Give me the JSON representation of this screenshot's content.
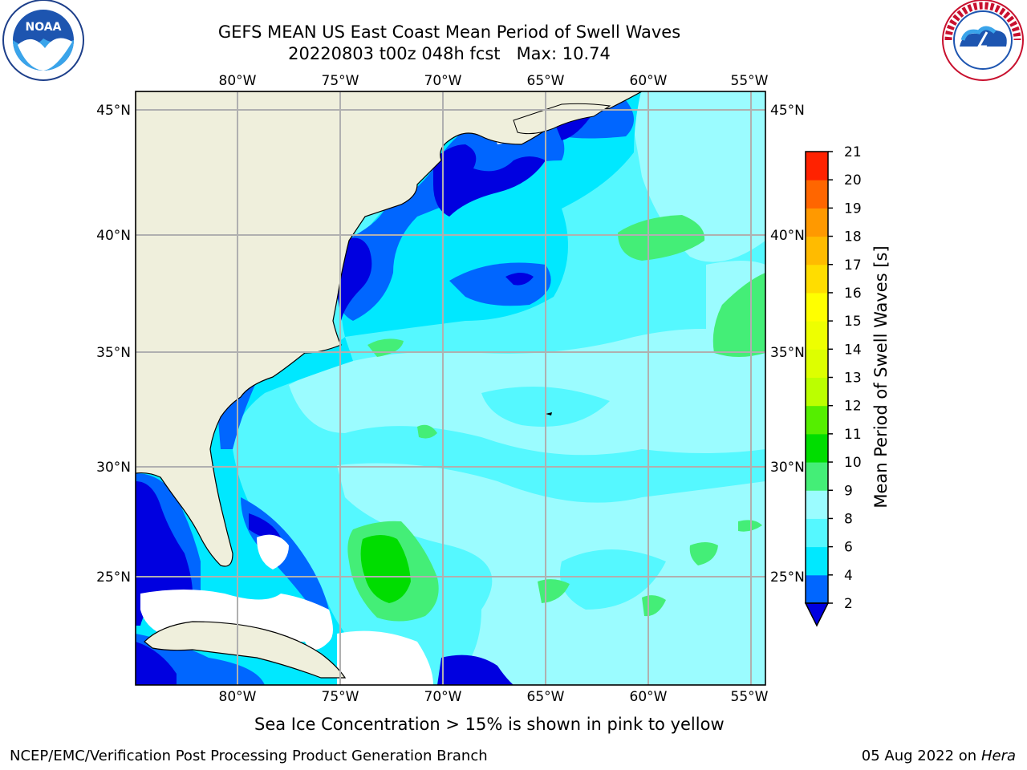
{
  "header": {
    "title_line1": "GEFS MEAN US East Coast Mean Period of Swell Waves",
    "title_line2": "20220803 t00z 048h fcst   Max: 10.74"
  },
  "logos": {
    "left": {
      "name": "noaa-logo",
      "text": "NOAA",
      "ring_text": "NATIONAL OCEANIC AND ATMOSPHERIC ADMINISTRATION · U.S. DEPARTMENT OF COMMERCE"
    },
    "right": {
      "name": "nws-logo",
      "ring_text": "NATIONAL WEATHER SERVICE"
    }
  },
  "map": {
    "lon_labels": [
      "80°W",
      "75°W",
      "70°W",
      "65°W",
      "60°W",
      "55°W"
    ],
    "lat_labels": [
      "45°N",
      "40°N",
      "35°N",
      "30°N",
      "25°N"
    ],
    "colors": {
      "land": "#efefdc",
      "lt_2": "#0000e0",
      "c2_4": "#0066ff",
      "c4_6": "#00e8ff",
      "c6_8": "#55f8ff",
      "c8_9": "#9bfcff",
      "c9_10": "#44ee77",
      "c10_11": "#00dd00"
    }
  },
  "colorbar": {
    "label": "Mean Period of Swell Waves [s]",
    "ticks": [
      "2",
      "4",
      "6",
      "8",
      "9",
      "10",
      "11",
      "12",
      "13",
      "14",
      "15",
      "16",
      "17",
      "18",
      "19",
      "20",
      "21"
    ],
    "colors": [
      "#0066ff",
      "#00e8ff",
      "#55f8ff",
      "#9bfcff",
      "#44ee77",
      "#00dd00",
      "#55ee00",
      "#bbff00",
      "#ddff00",
      "#eeff00",
      "#ffff00",
      "#ffdd00",
      "#ffbb00",
      "#ff9900",
      "#ff6600",
      "#ff2200"
    ],
    "extend_color": "#0000e0"
  },
  "footer": {
    "caption": "Sea Ice Concentration > 15% is shown in pink to yellow",
    "left": "NCEP/EMC/Verification Post Processing Product Generation Branch",
    "right_date": "05 Aug 2022 on",
    "right_machine": "Hera"
  }
}
